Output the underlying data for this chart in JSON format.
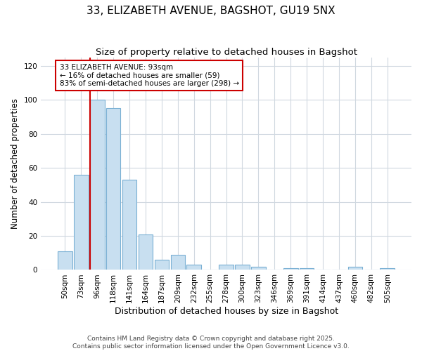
{
  "title": "33, ELIZABETH AVENUE, BAGSHOT, GU19 5NX",
  "subtitle": "Size of property relative to detached houses in Bagshot",
  "xlabel": "Distribution of detached houses by size in Bagshot",
  "ylabel": "Number of detached properties",
  "bar_color": "#c8dff0",
  "bar_edge_color": "#7ab0d4",
  "categories": [
    "50sqm",
    "73sqm",
    "96sqm",
    "118sqm",
    "141sqm",
    "164sqm",
    "187sqm",
    "209sqm",
    "232sqm",
    "255sqm",
    "278sqm",
    "300sqm",
    "323sqm",
    "346sqm",
    "369sqm",
    "391sqm",
    "414sqm",
    "437sqm",
    "460sqm",
    "482sqm",
    "505sqm"
  ],
  "values": [
    11,
    56,
    100,
    95,
    53,
    21,
    6,
    9,
    3,
    0,
    3,
    3,
    2,
    0,
    1,
    1,
    0,
    0,
    2,
    0,
    1
  ],
  "vline_color": "#cc0000",
  "annotation_text": "33 ELIZABETH AVENUE: 93sqm\n← 16% of detached houses are smaller (59)\n83% of semi-detached houses are larger (298) →",
  "annotation_box_color": "#cc0000",
  "annotation_facecolor": "#ffffff",
  "ylim": [
    0,
    125
  ],
  "yticks": [
    0,
    20,
    40,
    60,
    80,
    100,
    120
  ],
  "grid_color": "#d0d8e0",
  "background_color": "#ffffff",
  "footer_text": "Contains HM Land Registry data © Crown copyright and database right 2025.\nContains public sector information licensed under the Open Government Licence v3.0.",
  "title_fontsize": 11,
  "subtitle_fontsize": 9.5,
  "xlabel_fontsize": 9,
  "ylabel_fontsize": 8.5,
  "tick_fontsize": 7.5,
  "annotation_fontsize": 7.5,
  "footer_fontsize": 6.5
}
